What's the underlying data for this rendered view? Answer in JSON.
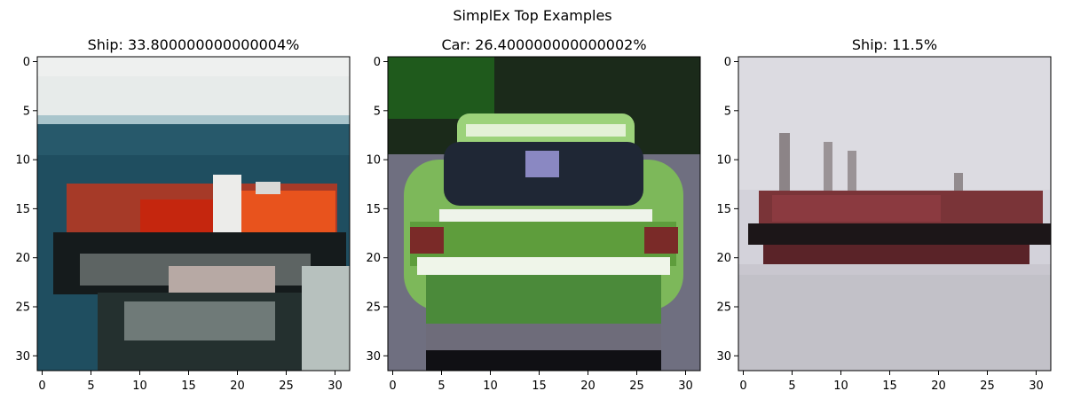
{
  "figure": {
    "suptitle": "SimplEx Top Examples"
  },
  "chart_data": [
    {
      "type": "image",
      "title": "Ship: 33.800000000000004%",
      "xlim": [
        -0.5,
        31.5
      ],
      "ylim": [
        31.5,
        -0.5
      ],
      "xticks": [
        0,
        5,
        10,
        15,
        20,
        25,
        30
      ],
      "yticks": [
        0,
        5,
        10,
        15,
        20,
        25,
        30
      ],
      "depicts": "cargo-ship-with-red-deck-on-sea"
    },
    {
      "type": "image",
      "title": "Car: 26.400000000000002%",
      "xlim": [
        -0.5,
        31.5
      ],
      "ylim": [
        31.5,
        -0.5
      ],
      "xticks": [
        0,
        5,
        10,
        15,
        20,
        25,
        30
      ],
      "yticks": [
        0,
        5,
        10,
        15,
        20,
        25,
        30
      ],
      "depicts": "green-car-front-view"
    },
    {
      "type": "image",
      "title": "Ship: 11.5%",
      "xlim": [
        -0.5,
        31.5
      ],
      "ylim": [
        31.5,
        -0.5
      ],
      "xticks": [
        0,
        5,
        10,
        15,
        20,
        25,
        30
      ],
      "yticks": [
        0,
        5,
        10,
        15,
        20,
        25,
        30
      ],
      "depicts": "dark-cargo-ship-on-grey-water"
    }
  ]
}
